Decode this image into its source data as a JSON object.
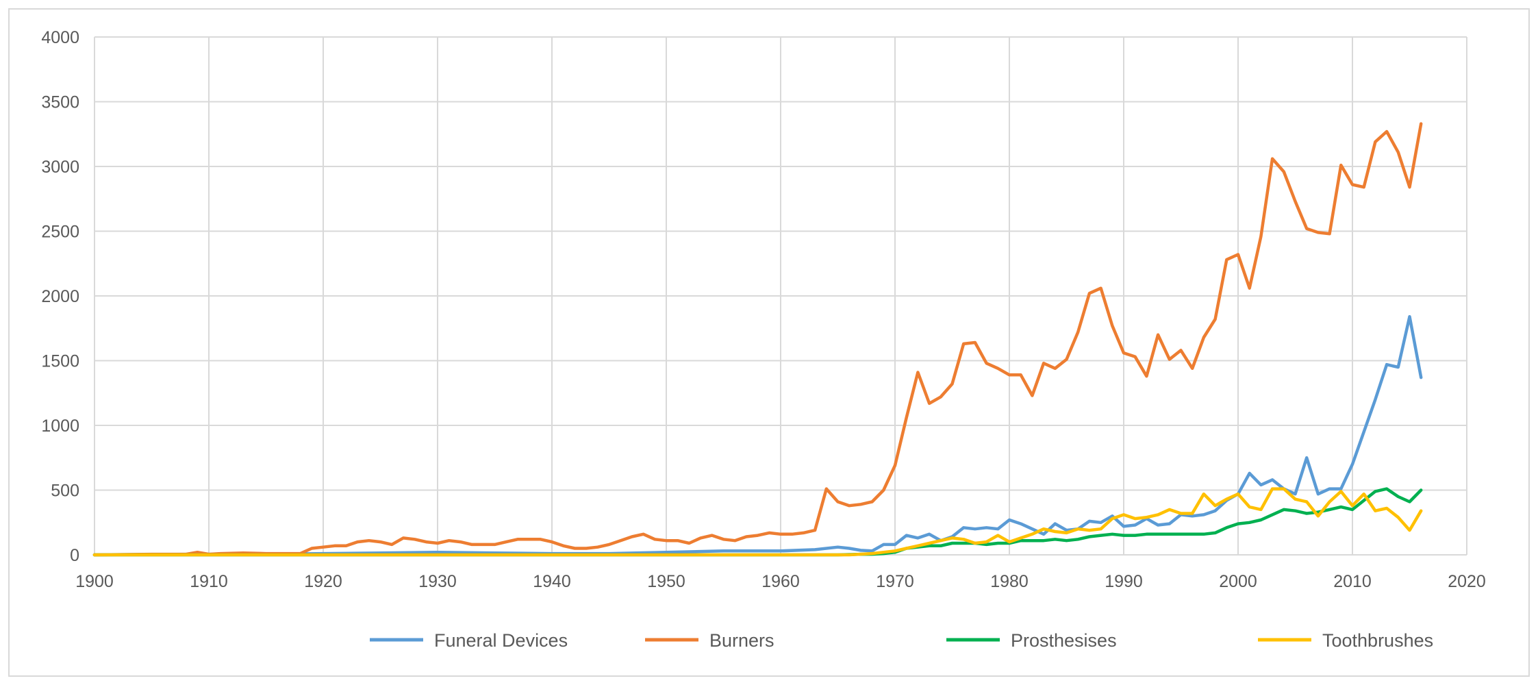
{
  "chart_data": {
    "type": "line",
    "title": "",
    "xlabel": "",
    "ylabel": "",
    "xlim": [
      1900,
      2020
    ],
    "ylim": [
      0,
      4000
    ],
    "x_ticks": [
      1900,
      1910,
      1920,
      1930,
      1940,
      1950,
      1960,
      1970,
      1980,
      1990,
      2000,
      2010,
      2020
    ],
    "y_ticks": [
      0,
      500,
      1000,
      1500,
      2000,
      2500,
      3000,
      3500,
      4000
    ],
    "grid": true,
    "legend_position": "bottom",
    "series": [
      {
        "name": "Funeral Devices",
        "color": "#5b9bd5",
        "points": [
          [
            1900,
            0
          ],
          [
            1905,
            3
          ],
          [
            1910,
            5
          ],
          [
            1915,
            5
          ],
          [
            1920,
            10
          ],
          [
            1925,
            15
          ],
          [
            1930,
            20
          ],
          [
            1935,
            15
          ],
          [
            1940,
            10
          ],
          [
            1945,
            10
          ],
          [
            1950,
            20
          ],
          [
            1955,
            30
          ],
          [
            1960,
            30
          ],
          [
            1963,
            40
          ],
          [
            1965,
            60
          ],
          [
            1966,
            50
          ],
          [
            1967,
            35
          ],
          [
            1968,
            30
          ],
          [
            1969,
            80
          ],
          [
            1970,
            80
          ],
          [
            1971,
            150
          ],
          [
            1972,
            130
          ],
          [
            1973,
            160
          ],
          [
            1974,
            110
          ],
          [
            1975,
            140
          ],
          [
            1976,
            210
          ],
          [
            1977,
            200
          ],
          [
            1978,
            210
          ],
          [
            1979,
            200
          ],
          [
            1980,
            270
          ],
          [
            1981,
            240
          ],
          [
            1982,
            200
          ],
          [
            1983,
            160
          ],
          [
            1984,
            240
          ],
          [
            1985,
            190
          ],
          [
            1986,
            200
          ],
          [
            1987,
            260
          ],
          [
            1988,
            250
          ],
          [
            1989,
            300
          ],
          [
            1990,
            220
          ],
          [
            1991,
            230
          ],
          [
            1992,
            280
          ],
          [
            1993,
            230
          ],
          [
            1994,
            240
          ],
          [
            1995,
            310
          ],
          [
            1996,
            300
          ],
          [
            1997,
            310
          ],
          [
            1998,
            340
          ],
          [
            1999,
            420
          ],
          [
            2000,
            470
          ],
          [
            2001,
            630
          ],
          [
            2002,
            540
          ],
          [
            2003,
            580
          ],
          [
            2004,
            510
          ],
          [
            2005,
            470
          ],
          [
            2006,
            750
          ],
          [
            2007,
            470
          ],
          [
            2008,
            510
          ],
          [
            2009,
            510
          ],
          [
            2010,
            700
          ],
          [
            2011,
            950
          ],
          [
            2012,
            1200
          ],
          [
            2013,
            1470
          ],
          [
            2014,
            1450
          ],
          [
            2015,
            1840
          ],
          [
            2016,
            1370
          ]
        ]
      },
      {
        "name": "Burners",
        "color": "#ed7d31",
        "points": [
          [
            1900,
            0
          ],
          [
            1905,
            5
          ],
          [
            1908,
            5
          ],
          [
            1909,
            20
          ],
          [
            1910,
            5
          ],
          [
            1911,
            10
          ],
          [
            1913,
            15
          ],
          [
            1915,
            10
          ],
          [
            1918,
            10
          ],
          [
            1919,
            50
          ],
          [
            1920,
            60
          ],
          [
            1921,
            70
          ],
          [
            1922,
            70
          ],
          [
            1923,
            100
          ],
          [
            1924,
            110
          ],
          [
            1925,
            100
          ],
          [
            1926,
            80
          ],
          [
            1927,
            130
          ],
          [
            1928,
            120
          ],
          [
            1929,
            100
          ],
          [
            1930,
            90
          ],
          [
            1931,
            110
          ],
          [
            1932,
            100
          ],
          [
            1933,
            80
          ],
          [
            1934,
            80
          ],
          [
            1935,
            80
          ],
          [
            1936,
            100
          ],
          [
            1937,
            120
          ],
          [
            1938,
            120
          ],
          [
            1939,
            120
          ],
          [
            1940,
            100
          ],
          [
            1941,
            70
          ],
          [
            1942,
            50
          ],
          [
            1943,
            50
          ],
          [
            1944,
            60
          ],
          [
            1945,
            80
          ],
          [
            1946,
            110
          ],
          [
            1947,
            140
          ],
          [
            1948,
            160
          ],
          [
            1949,
            120
          ],
          [
            1950,
            110
          ],
          [
            1951,
            110
          ],
          [
            1952,
            90
          ],
          [
            1953,
            130
          ],
          [
            1954,
            150
          ],
          [
            1955,
            120
          ],
          [
            1956,
            110
          ],
          [
            1957,
            140
          ],
          [
            1958,
            150
          ],
          [
            1959,
            170
          ],
          [
            1960,
            160
          ],
          [
            1961,
            160
          ],
          [
            1962,
            170
          ],
          [
            1963,
            190
          ],
          [
            1964,
            510
          ],
          [
            1965,
            410
          ],
          [
            1966,
            380
          ],
          [
            1967,
            390
          ],
          [
            1968,
            410
          ],
          [
            1969,
            500
          ],
          [
            1970,
            690
          ],
          [
            1971,
            1060
          ],
          [
            1972,
            1410
          ],
          [
            1973,
            1170
          ],
          [
            1974,
            1220
          ],
          [
            1975,
            1320
          ],
          [
            1976,
            1630
          ],
          [
            1977,
            1640
          ],
          [
            1978,
            1480
          ],
          [
            1979,
            1440
          ],
          [
            1980,
            1390
          ],
          [
            1981,
            1390
          ],
          [
            1982,
            1230
          ],
          [
            1983,
            1480
          ],
          [
            1984,
            1440
          ],
          [
            1985,
            1510
          ],
          [
            1986,
            1720
          ],
          [
            1987,
            2020
          ],
          [
            1988,
            2060
          ],
          [
            1989,
            1770
          ],
          [
            1990,
            1560
          ],
          [
            1991,
            1530
          ],
          [
            1992,
            1380
          ],
          [
            1993,
            1700
          ],
          [
            1994,
            1510
          ],
          [
            1995,
            1580
          ],
          [
            1996,
            1440
          ],
          [
            1997,
            1680
          ],
          [
            1998,
            1820
          ],
          [
            1999,
            2280
          ],
          [
            2000,
            2320
          ],
          [
            2001,
            2060
          ],
          [
            2002,
            2460
          ],
          [
            2003,
            3060
          ],
          [
            2004,
            2960
          ],
          [
            2005,
            2730
          ],
          [
            2006,
            2520
          ],
          [
            2007,
            2490
          ],
          [
            2008,
            2480
          ],
          [
            2009,
            3010
          ],
          [
            2010,
            2860
          ],
          [
            2011,
            2840
          ],
          [
            2012,
            3190
          ],
          [
            2013,
            3270
          ],
          [
            2014,
            3110
          ],
          [
            2015,
            2840
          ],
          [
            2016,
            3330
          ]
        ]
      },
      {
        "name": "Prosthesises",
        "color": "#00b050",
        "points": [
          [
            1900,
            0
          ],
          [
            1920,
            0
          ],
          [
            1940,
            0
          ],
          [
            1960,
            0
          ],
          [
            1965,
            0
          ],
          [
            1967,
            5
          ],
          [
            1968,
            5
          ],
          [
            1969,
            10
          ],
          [
            1970,
            20
          ],
          [
            1971,
            50
          ],
          [
            1972,
            60
          ],
          [
            1973,
            70
          ],
          [
            1974,
            70
          ],
          [
            1975,
            90
          ],
          [
            1976,
            90
          ],
          [
            1977,
            90
          ],
          [
            1978,
            80
          ],
          [
            1979,
            90
          ],
          [
            1980,
            90
          ],
          [
            1981,
            110
          ],
          [
            1982,
            110
          ],
          [
            1983,
            110
          ],
          [
            1984,
            120
          ],
          [
            1985,
            110
          ],
          [
            1986,
            120
          ],
          [
            1987,
            140
          ],
          [
            1988,
            150
          ],
          [
            1989,
            160
          ],
          [
            1990,
            150
          ],
          [
            1991,
            150
          ],
          [
            1992,
            160
          ],
          [
            1993,
            160
          ],
          [
            1994,
            160
          ],
          [
            1995,
            160
          ],
          [
            1996,
            160
          ],
          [
            1997,
            160
          ],
          [
            1998,
            170
          ],
          [
            1999,
            210
          ],
          [
            2000,
            240
          ],
          [
            2001,
            250
          ],
          [
            2002,
            270
          ],
          [
            2003,
            310
          ],
          [
            2004,
            350
          ],
          [
            2005,
            340
          ],
          [
            2006,
            320
          ],
          [
            2007,
            330
          ],
          [
            2008,
            350
          ],
          [
            2009,
            370
          ],
          [
            2010,
            350
          ],
          [
            2011,
            420
          ],
          [
            2012,
            490
          ],
          [
            2013,
            510
          ],
          [
            2014,
            450
          ],
          [
            2015,
            410
          ],
          [
            2016,
            500
          ]
        ]
      },
      {
        "name": "Toothbrushes",
        "color": "#ffc000",
        "points": [
          [
            1900,
            0
          ],
          [
            1920,
            0
          ],
          [
            1940,
            0
          ],
          [
            1960,
            0
          ],
          [
            1966,
            0
          ],
          [
            1968,
            10
          ],
          [
            1969,
            20
          ],
          [
            1970,
            30
          ],
          [
            1971,
            50
          ],
          [
            1972,
            70
          ],
          [
            1973,
            90
          ],
          [
            1974,
            110
          ],
          [
            1975,
            130
          ],
          [
            1976,
            120
          ],
          [
            1977,
            90
          ],
          [
            1978,
            100
          ],
          [
            1979,
            150
          ],
          [
            1980,
            100
          ],
          [
            1981,
            130
          ],
          [
            1982,
            160
          ],
          [
            1983,
            200
          ],
          [
            1984,
            180
          ],
          [
            1985,
            170
          ],
          [
            1986,
            200
          ],
          [
            1987,
            190
          ],
          [
            1988,
            200
          ],
          [
            1989,
            280
          ],
          [
            1990,
            310
          ],
          [
            1991,
            280
          ],
          [
            1992,
            290
          ],
          [
            1993,
            310
          ],
          [
            1994,
            350
          ],
          [
            1995,
            320
          ],
          [
            1996,
            320
          ],
          [
            1997,
            470
          ],
          [
            1998,
            380
          ],
          [
            1999,
            430
          ],
          [
            2000,
            470
          ],
          [
            2001,
            370
          ],
          [
            2002,
            350
          ],
          [
            2003,
            510
          ],
          [
            2004,
            510
          ],
          [
            2005,
            430
          ],
          [
            2006,
            410
          ],
          [
            2007,
            300
          ],
          [
            2008,
            410
          ],
          [
            2009,
            490
          ],
          [
            2010,
            380
          ],
          [
            2011,
            470
          ],
          [
            2012,
            340
          ],
          [
            2013,
            360
          ],
          [
            2014,
            290
          ],
          [
            2015,
            190
          ],
          [
            2016,
            340
          ]
        ]
      }
    ]
  }
}
